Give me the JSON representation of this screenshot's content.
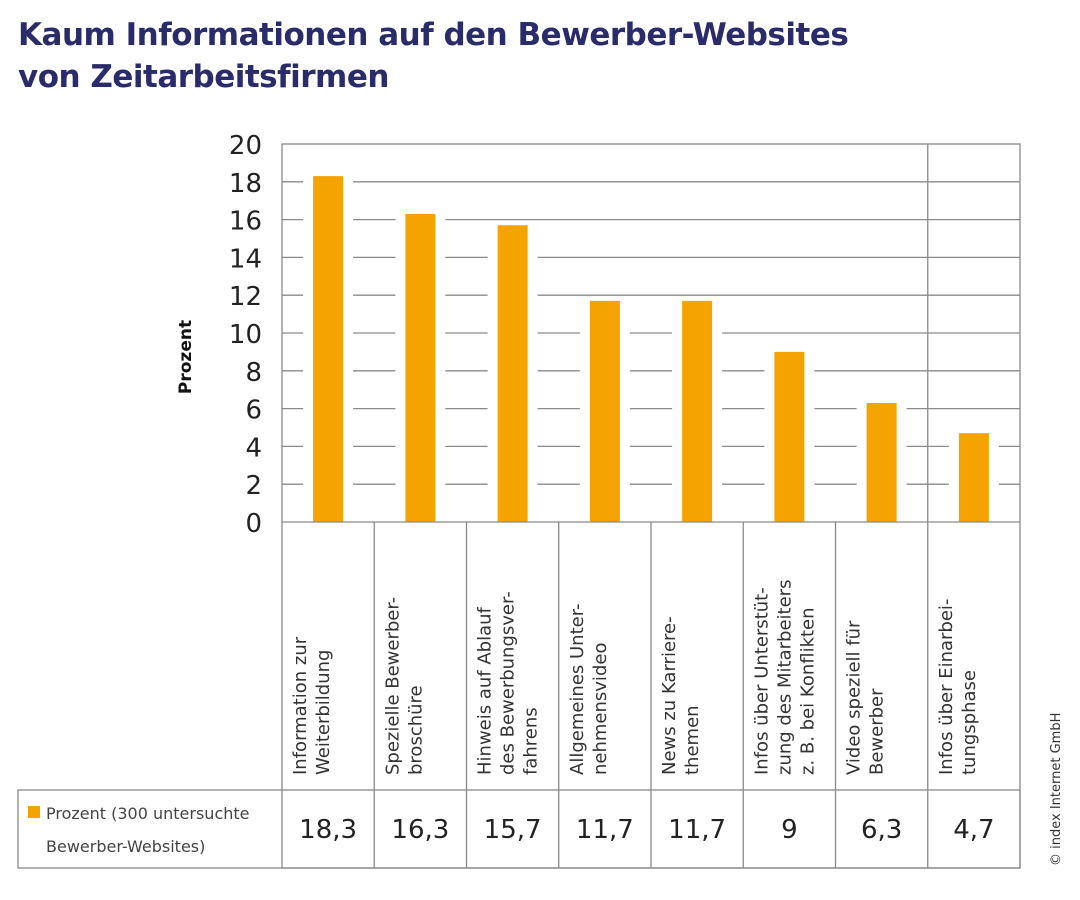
{
  "title_lines": [
    "Kaum Informationen auf den Bewerber-Websites",
    "von Zeitarbeitsfirmen"
  ],
  "copyright": "© index Internet GmbH",
  "colors": {
    "bar": "#f5a300",
    "title": "#2a2b6b",
    "grid": "#8a8a8a"
  },
  "chart_data": {
    "type": "bar",
    "title": "Kaum Informationen auf den Bewerber-Websites von Zeitarbeitsfirmen",
    "ylabel": "Prozent",
    "ylim": [
      0,
      20
    ],
    "yticks": [
      "0",
      "2",
      "4",
      "6",
      "8",
      "10",
      "12",
      "14",
      "16",
      "18",
      "20"
    ],
    "grid": true,
    "categories": [
      [
        "Information zur",
        "Weiterbildung"
      ],
      [
        "Spezielle Bewerber-",
        "broschüre"
      ],
      [
        "Hinweis auf Ablauf",
        "des Bewerbungsver-",
        "fahrens"
      ],
      [
        "Allgemeines Unter-",
        "nehmensvideo"
      ],
      [
        "News zu Karriere-",
        "themen"
      ],
      [
        "Infos über Unterstüt-",
        "zung des Mitarbeiters",
        "z. B. bei Konflikten"
      ],
      [
        "Video speziell für",
        "Bewerber"
      ],
      [
        "Infos über Einarbei-",
        "tungsphase"
      ]
    ],
    "series": [
      {
        "name_lines": [
          "Prozent (300 untersuchte",
          "Bewerber-Websites)"
        ],
        "values": [
          18.3,
          16.3,
          15.7,
          11.7,
          11.7,
          9,
          6.3,
          4.7
        ],
        "value_labels": [
          "18,3",
          "16,3",
          "15,7",
          "11,7",
          "11,7",
          "9",
          "6,3",
          "4,7"
        ]
      }
    ]
  }
}
